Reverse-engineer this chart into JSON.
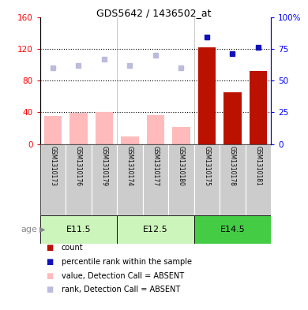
{
  "title": "GDS5642 / 1436502_at",
  "samples": [
    "GSM1310173",
    "GSM1310176",
    "GSM1310179",
    "GSM1310174",
    "GSM1310177",
    "GSM1310180",
    "GSM1310175",
    "GSM1310178",
    "GSM1310181"
  ],
  "age_groups": [
    {
      "label": "E11.5",
      "start": 0,
      "end": 3,
      "color": "#ccf0bb"
    },
    {
      "label": "E12.5",
      "start": 3,
      "end": 6,
      "color": "#ccf0bb"
    },
    {
      "label": "E14.5",
      "start": 6,
      "end": 9,
      "color": "#55dd55"
    }
  ],
  "count_values": [
    0,
    0,
    0,
    0,
    0,
    0,
    122,
    65,
    92
  ],
  "rank_values": [
    0,
    0,
    0,
    0,
    0,
    0,
    84,
    71,
    76
  ],
  "absent_value": [
    35,
    39,
    40,
    10,
    36,
    22,
    0,
    0,
    0
  ],
  "absent_rank": [
    60,
    62,
    67,
    62,
    70,
    60,
    0,
    0,
    0
  ],
  "left_ylim": [
    0,
    160
  ],
  "left_yticks": [
    0,
    40,
    80,
    120,
    160
  ],
  "right_ylim": [
    0,
    100
  ],
  "right_yticks": [
    0,
    25,
    50,
    75,
    100
  ],
  "count_color": "#bb1100",
  "rank_color": "#1111bb",
  "absent_value_color": "#ffbbbb",
  "absent_rank_color": "#bbbbdd",
  "sample_bg_color": "#cccccc",
  "legend_items": [
    {
      "color": "#bb1100",
      "label": "count"
    },
    {
      "color": "#1111bb",
      "label": "percentile rank within the sample"
    },
    {
      "color": "#ffbbbb",
      "label": "value, Detection Call = ABSENT"
    },
    {
      "color": "#bbbbdd",
      "label": "rank, Detection Call = ABSENT"
    }
  ]
}
